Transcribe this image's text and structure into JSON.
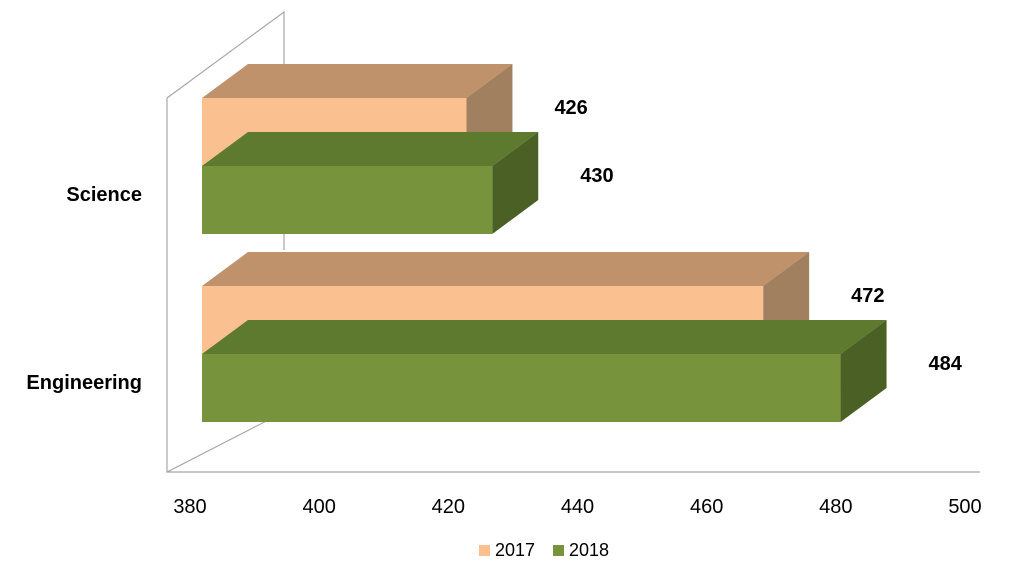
{
  "chart_data": {
    "type": "bar",
    "orientation": "horizontal",
    "three_d": true,
    "categories": [
      "Science",
      "Engineering"
    ],
    "series": [
      {
        "name": "2017",
        "values": [
          426,
          472
        ],
        "color": "#FAC090",
        "top_color": "#C0926C",
        "side_color": "#A0805E"
      },
      {
        "name": "2018",
        "values": [
          430,
          484
        ],
        "color": "#77933C",
        "top_color": "#5E7A2E",
        "side_color": "#4A6024"
      }
    ],
    "x_axis": {
      "min": 380,
      "max": 500,
      "ticks": [
        380,
        400,
        420,
        440,
        460,
        480,
        500
      ]
    },
    "title": "",
    "xlabel": "",
    "ylabel": "",
    "grid": false,
    "legend_position": "bottom",
    "data_labels": true
  }
}
